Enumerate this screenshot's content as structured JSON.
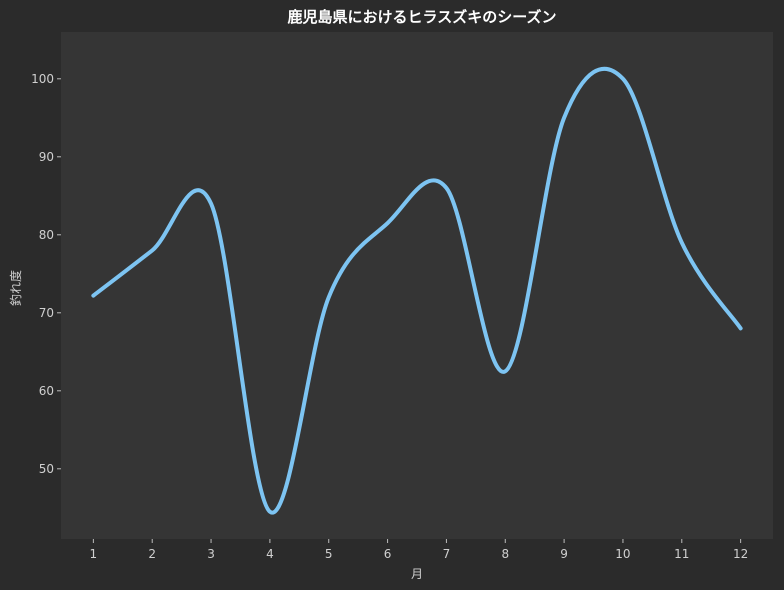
{
  "chart_data": {
    "type": "line",
    "title": "鹿児島県におけるヒラスズキのシーズン",
    "xlabel": "月",
    "ylabel": "釣れ度",
    "x": [
      1,
      2,
      3,
      4,
      5,
      6,
      7,
      8,
      9,
      10,
      11,
      12
    ],
    "x_tick_labels": [
      "1",
      "2",
      "3",
      "4",
      "5",
      "6",
      "7",
      "8",
      "9",
      "10",
      "11",
      "12"
    ],
    "y_ticks": [
      50,
      60,
      70,
      80,
      90,
      100
    ],
    "y_tick_labels": [
      "50",
      "60",
      "70",
      "80",
      "90",
      "100"
    ],
    "xlim": [
      0.45,
      12.55
    ],
    "ylim": [
      41,
      106
    ],
    "grid": false,
    "series": [
      {
        "values": [
          72.2,
          78.0,
          84.0,
          44.5,
          72.0,
          81.5,
          86.0,
          62.5,
          95.0,
          100.0,
          79.0,
          68.0
        ],
        "color": "#7dc4f2",
        "smooth": true
      }
    ],
    "colors": {
      "background": "#2b2b2b",
      "plot_area": "#353535",
      "text": "#d0d0d0",
      "title": "#ffffff"
    }
  }
}
